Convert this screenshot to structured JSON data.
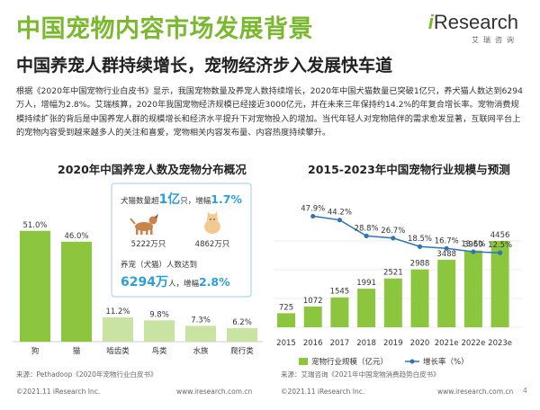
{
  "header": {
    "title": "中国宠物内容市场发展背景",
    "subtitle": "中国养宠人群持续增长，宠物经济步入发展快车道",
    "logo_text": "Research",
    "logo_prefix": "i",
    "logo_sub": "艾瑞咨询"
  },
  "body_text": "根据《2020年中国宠物行业白皮书》显示，我国宠物数量及养宠人数持续增长，2020年中国犬猫数量已突破1亿只，养犬猫人数达到6294万人，增幅为2.8%。艾瑞核算，2020年我国宠物经济规模已经接近3000亿元，并在未来三年保持约14.2%的年复合增长率。宠物消费规模持续扩张的背后是中国养宠人群的规模增长和经济水平提升下对宠物投入的增加。当代年轻人对宠物陪伴的需求愈发显著，互联网平台上的宠物内容受到越来越多人的关注和喜爱，宠物相关内容发布量、内容热度持续攀升。",
  "left_chart": {
    "title": "2020年中国养宠人数及宠物分布概况",
    "source": "来源：Pethadoop《2020年宠物行业白皮书》",
    "callout": {
      "line1_pre": "犬猫数量超",
      "line1_big": "1亿",
      "line1_mid": "只，增幅",
      "line1_pct": "1.7%",
      "dog_count": "5222万只",
      "cat_count": "4862万只",
      "line2_pre": "养宠（犬猫）人数达到",
      "line3_big": "6294万",
      "line3_mid": "人，增幅",
      "line3_pct": "2.8%"
    }
  },
  "right_chart": {
    "title": "2015-2023年中国宠物行业规模与预测",
    "source": "来源：艾瑞咨询《2021年中国宠物消费趋势白皮书》",
    "legend_bar": "宠物行业规模（亿元）",
    "legend_line": "增长率（%）"
  },
  "chart_data": [
    {
      "type": "bar",
      "title": "2020年中国养宠人数及宠物分布概况",
      "categories": [
        "狗",
        "猫",
        "啮齿类",
        "鸟类",
        "水族",
        "爬行类"
      ],
      "values": [
        51.0,
        46.0,
        11.2,
        9.8,
        7.3,
        6.2
      ],
      "value_labels": [
        "51.0%",
        "46.0%",
        "11.2%",
        "9.8%",
        "7.3%",
        "6.2%"
      ],
      "ylim": [
        0,
        60
      ]
    },
    {
      "type": "bar",
      "title": "2015-2023年中国宠物行业规模与预测",
      "categories": [
        "2015",
        "2016",
        "2017",
        "2018",
        "2019",
        "2020",
        "2021e",
        "2022e",
        "2023e"
      ],
      "series": [
        {
          "name": "宠物行业规模（亿元）",
          "type": "bar",
          "values": [
            725,
            1072,
            1545,
            1991,
            2521,
            2988,
            3488,
            3960,
            4456
          ]
        },
        {
          "name": "增长率（%）",
          "type": "line",
          "values": [
            null,
            47.9,
            44.2,
            28.8,
            26.7,
            18.5,
            16.7,
            13.5,
            12.5
          ]
        }
      ],
      "bar_labels": [
        "725",
        "1072",
        "1545",
        "1991",
        "2521",
        "2988",
        "3488",
        "3960",
        "4456"
      ],
      "line_labels": [
        "47.9%",
        "44.2%",
        "28.8%",
        "26.7%",
        "18.5%",
        "16.7%",
        "13.5%",
        "12.5%"
      ],
      "legend": "bottom",
      "colors": {
        "bar": "#8cc63f",
        "line": "#2e75b6"
      }
    }
  ],
  "footer": {
    "copyright_left": "©2021.11 iResearch Inc.",
    "url_left": "www.iresearch.com.cn",
    "copyright_right": "©2021.11 iResearch Inc.",
    "url_right": "www.iresearch.com.cn",
    "page": "4"
  },
  "colors": {
    "brand_green": "#7ab82e",
    "bar_green": "#8cc63f",
    "bar_green_light": "#c9e4a2",
    "line_blue": "#2e75b6",
    "callout_blue": "#2b9fd9"
  }
}
